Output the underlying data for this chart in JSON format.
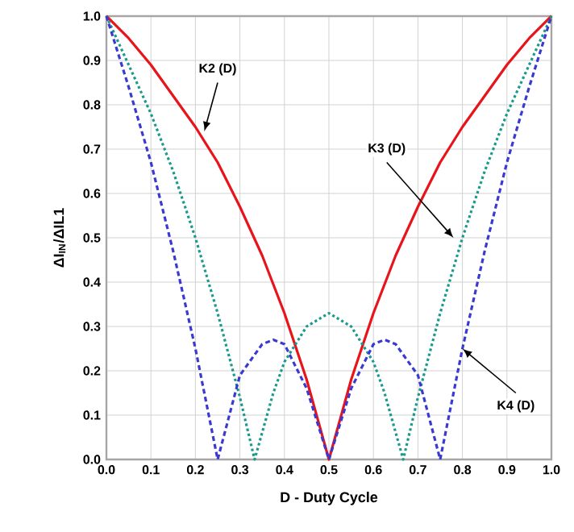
{
  "chart_data": {
    "type": "line",
    "xlabel": "D - Duty Cycle",
    "ylabel": "ΔI$_{IN}$/ΔIL1",
    "xlim": [
      0,
      1
    ],
    "ylim": [
      0,
      1
    ],
    "xticks": [
      {
        "value": 0,
        "label": "0.0"
      },
      0.1,
      0.2,
      0.3,
      0.4,
      0.5,
      0.6,
      0.7,
      0.8,
      0.9,
      {
        "value": 1,
        "label": "1.0"
      }
    ],
    "yticks": [
      {
        "value": 0,
        "label": "0.0"
      },
      0.1,
      0.2,
      0.3,
      0.4,
      0.5,
      0.6,
      0.7,
      0.8,
      0.9,
      {
        "value": 1,
        "label": "1.0"
      }
    ],
    "grid": true,
    "marker": "none",
    "series": [
      {
        "color": "#e8141b",
        "line_style": "solid",
        "x": [
          0,
          0.05,
          0.1,
          0.15,
          0.2,
          0.25,
          0.3,
          0.35,
          0.4,
          0.45,
          0.5,
          0.55,
          0.6,
          0.65,
          0.7,
          0.75,
          0.8,
          0.85,
          0.9,
          0.95,
          1
        ],
        "values": [
          1.0,
          0.95,
          0.89,
          0.82,
          0.75,
          0.67,
          0.57,
          0.46,
          0.33,
          0.18,
          0.0,
          0.18,
          0.33,
          0.46,
          0.57,
          0.67,
          0.75,
          0.82,
          0.89,
          0.95,
          1.0
        ]
      },
      {
        "color": "#1a9a8c",
        "line_style": "dotted",
        "x": [
          0,
          0.05,
          0.1,
          0.15,
          0.2,
          0.25,
          0.3,
          0.333,
          0.375,
          0.4,
          0.45,
          0.5,
          0.55,
          0.6,
          0.625,
          0.667,
          0.7,
          0.75,
          0.8,
          0.85,
          0.9,
          0.95,
          1
        ],
        "values": [
          1.0,
          0.89,
          0.78,
          0.65,
          0.5,
          0.33,
          0.14,
          0.0,
          0.15,
          0.22,
          0.3,
          0.33,
          0.3,
          0.22,
          0.15,
          0.0,
          0.14,
          0.33,
          0.5,
          0.65,
          0.78,
          0.89,
          1.0
        ]
      },
      {
        "color": "#3a3ad0",
        "line_style": "dashed",
        "x": [
          0,
          0.05,
          0.1,
          0.15,
          0.2,
          0.25,
          0.3,
          0.35,
          0.375,
          0.4,
          0.45,
          0.5,
          0.55,
          0.6,
          0.625,
          0.65,
          0.7,
          0.75,
          0.8,
          0.85,
          0.9,
          0.95,
          1
        ],
        "values": [
          1.0,
          0.84,
          0.67,
          0.47,
          0.25,
          0.0,
          0.19,
          0.26,
          0.27,
          0.26,
          0.16,
          0.0,
          0.16,
          0.26,
          0.27,
          0.26,
          0.19,
          0.0,
          0.25,
          0.47,
          0.67,
          0.84,
          1.0
        ]
      }
    ],
    "annotations": [
      {
        "text": "K2 (D)",
        "x": 0.22,
        "y": 0.74
      },
      {
        "text": "K3 (D)",
        "x": 0.78,
        "y": 0.5
      },
      {
        "text": "K4 (D)",
        "x": 0.8,
        "y": 0.25
      }
    ]
  }
}
